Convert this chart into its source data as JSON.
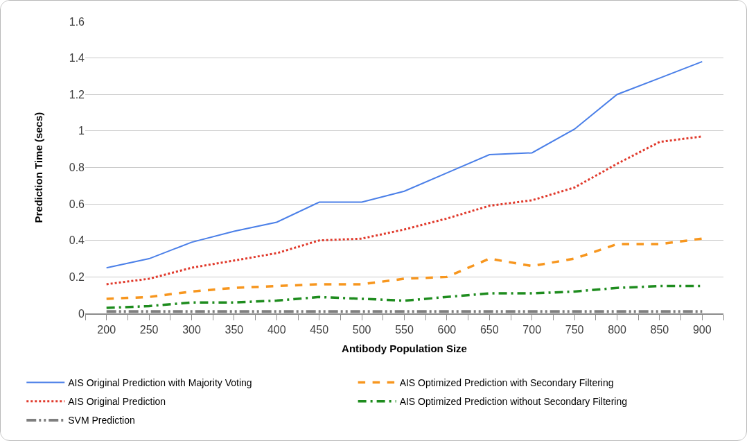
{
  "chart_data": {
    "type": "line",
    "xlabel": "Antibody Population Size",
    "ylabel": "Prediction Time (secs)",
    "categories": [
      "200",
      "250",
      "300",
      "350",
      "400",
      "450",
      "500",
      "550",
      "600",
      "650",
      "700",
      "750",
      "800",
      "850",
      "900"
    ],
    "series": [
      {
        "name": "AIS Original Prediction with Majority Voting",
        "color": "#4a7fe8",
        "line_style": "solid",
        "values": [
          0.25,
          0.3,
          0.39,
          0.45,
          0.5,
          0.61,
          0.61,
          0.67,
          0.77,
          0.87,
          0.88,
          1.01,
          1.2,
          1.29,
          1.38
        ]
      },
      {
        "name": "AIS Optimized Prediction with Secondary Filtering",
        "color": "#f7961e",
        "line_style": "dashed",
        "values": [
          0.08,
          0.09,
          0.12,
          0.14,
          0.15,
          0.16,
          0.16,
          0.19,
          0.2,
          0.3,
          0.26,
          0.3,
          0.38,
          0.38,
          0.41
        ]
      },
      {
        "name": "AIS Original Prediction",
        "color": "#e0392b",
        "line_style": "dotted",
        "values": [
          0.16,
          0.19,
          0.25,
          0.29,
          0.33,
          0.4,
          0.41,
          0.46,
          0.52,
          0.59,
          0.62,
          0.69,
          0.82,
          0.94,
          0.97
        ]
      },
      {
        "name": "AIS Optimized Prediction without Secondary Filtering",
        "color": "#1e8c1e",
        "line_style": "dashdot",
        "values": [
          0.03,
          0.04,
          0.06,
          0.06,
          0.07,
          0.09,
          0.08,
          0.07,
          0.09,
          0.11,
          0.11,
          0.12,
          0.14,
          0.15,
          0.15
        ]
      },
      {
        "name": "SVM Prediction",
        "color": "#7f7f7f",
        "line_style": "dashdotdot",
        "values": [
          0.01,
          0.01,
          0.01,
          0.01,
          0.01,
          0.01,
          0.01,
          0.01,
          0.01,
          0.01,
          0.01,
          0.01,
          0.01,
          0.01,
          0.01
        ]
      }
    ],
    "ylim": [
      0,
      1.6
    ],
    "yticks": [
      0,
      0.2,
      0.4,
      0.6,
      0.8,
      1,
      1.2,
      1.4,
      1.6
    ],
    "grid": "y",
    "legend": "bottom",
    "marker": "none"
  }
}
